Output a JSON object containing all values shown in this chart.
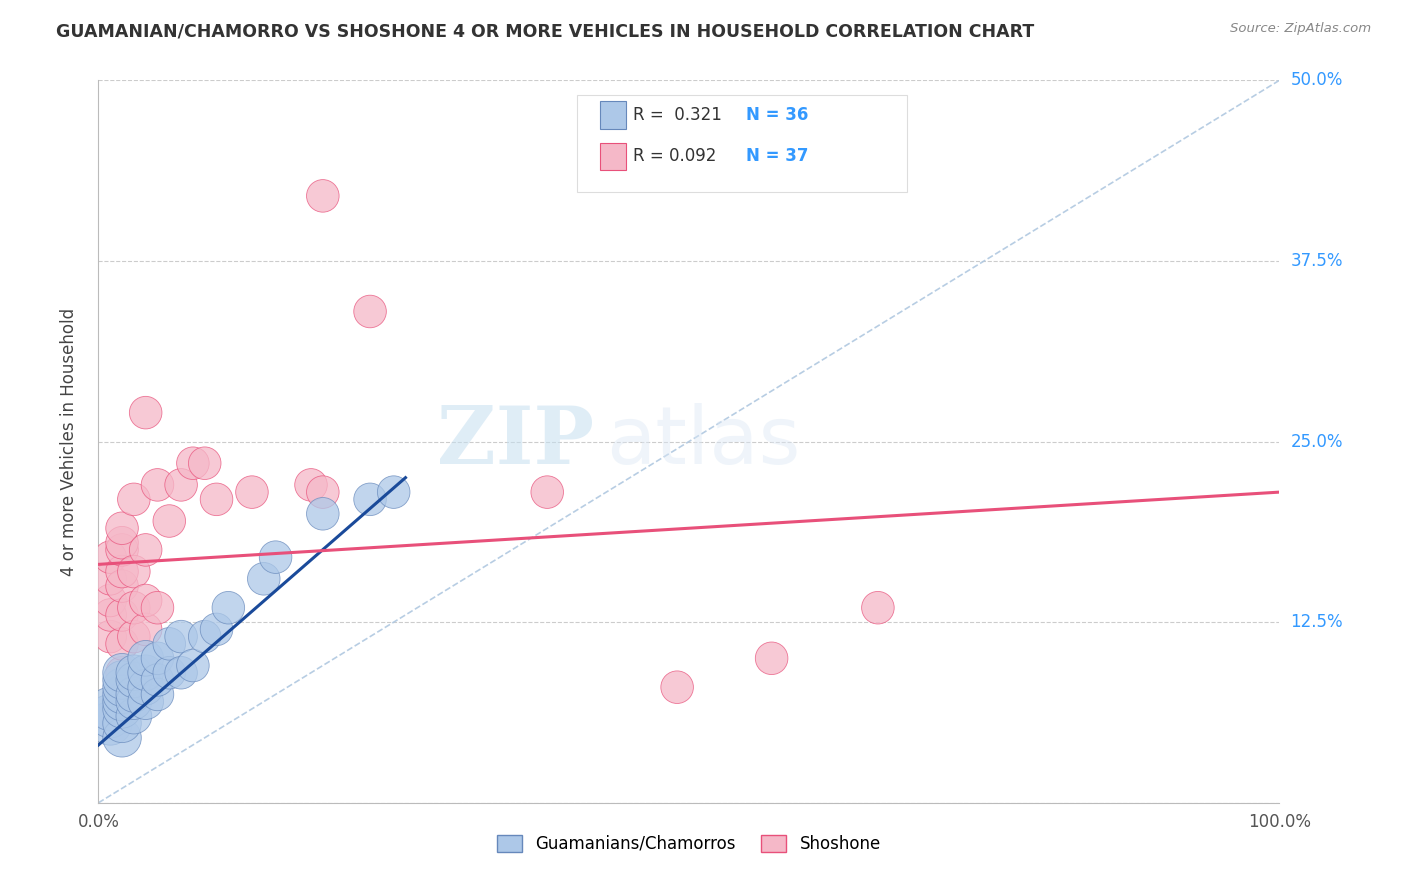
{
  "title": "GUAMANIAN/CHAMORRO VS SHOSHONE 4 OR MORE VEHICLES IN HOUSEHOLD CORRELATION CHART",
  "source": "Source: ZipAtlas.com",
  "ylabel": "4 or more Vehicles in Household",
  "xmin": 0.0,
  "xmax": 1.0,
  "ymin": 0.0,
  "ymax": 0.5,
  "yticks": [
    0.0,
    0.125,
    0.25,
    0.375,
    0.5
  ],
  "ytick_labels": [
    "",
    "12.5%",
    "25.0%",
    "37.5%",
    "50.0%"
  ],
  "xticks": [
    0.0,
    1.0
  ],
  "xtick_labels": [
    "0.0%",
    "100.0%"
  ],
  "legend_r1": "R =  0.321",
  "legend_n1": "N = 36",
  "legend_r2": "R = 0.092",
  "legend_n2": "N = 37",
  "color_blue": "#adc8e8",
  "color_pink": "#f5b8c8",
  "line_blue": "#1a4a9a",
  "line_pink": "#e8507a",
  "watermark_zip": "ZIP",
  "watermark_atlas": "atlas",
  "guamanian_x": [
    0.01,
    0.01,
    0.01,
    0.02,
    0.02,
    0.02,
    0.02,
    0.02,
    0.02,
    0.02,
    0.02,
    0.03,
    0.03,
    0.03,
    0.03,
    0.03,
    0.04,
    0.04,
    0.04,
    0.04,
    0.05,
    0.05,
    0.05,
    0.06,
    0.06,
    0.07,
    0.07,
    0.08,
    0.09,
    0.1,
    0.11,
    0.14,
    0.15,
    0.19,
    0.23,
    0.25
  ],
  "guamanian_y": [
    0.055,
    0.06,
    0.065,
    0.045,
    0.055,
    0.065,
    0.07,
    0.075,
    0.08,
    0.085,
    0.09,
    0.06,
    0.07,
    0.075,
    0.085,
    0.09,
    0.07,
    0.08,
    0.09,
    0.1,
    0.075,
    0.085,
    0.1,
    0.09,
    0.11,
    0.09,
    0.115,
    0.095,
    0.115,
    0.12,
    0.135,
    0.155,
    0.17,
    0.2,
    0.21,
    0.215
  ],
  "guamanian_size": [
    18,
    18,
    18,
    14,
    14,
    14,
    14,
    14,
    14,
    14,
    14,
    12,
    12,
    12,
    12,
    12,
    12,
    12,
    12,
    12,
    10,
    10,
    10,
    10,
    10,
    10,
    10,
    10,
    10,
    10,
    10,
    10,
    10,
    10,
    10,
    10
  ],
  "shoshone_x": [
    0.01,
    0.01,
    0.01,
    0.01,
    0.01,
    0.02,
    0.02,
    0.02,
    0.02,
    0.02,
    0.02,
    0.02,
    0.02,
    0.03,
    0.03,
    0.03,
    0.03,
    0.04,
    0.04,
    0.04,
    0.04,
    0.05,
    0.05,
    0.06,
    0.07,
    0.08,
    0.09,
    0.1,
    0.13,
    0.18,
    0.19,
    0.23,
    0.49,
    0.57,
    0.66,
    0.19,
    0.38
  ],
  "shoshone_y": [
    0.115,
    0.13,
    0.14,
    0.155,
    0.17,
    0.09,
    0.11,
    0.13,
    0.15,
    0.16,
    0.175,
    0.18,
    0.19,
    0.115,
    0.135,
    0.16,
    0.21,
    0.12,
    0.14,
    0.175,
    0.27,
    0.135,
    0.22,
    0.195,
    0.22,
    0.235,
    0.235,
    0.21,
    0.215,
    0.22,
    0.215,
    0.34,
    0.08,
    0.1,
    0.135,
    0.42,
    0.215
  ],
  "shoshone_size": [
    10,
    10,
    10,
    10,
    10,
    10,
    10,
    10,
    10,
    10,
    10,
    10,
    10,
    10,
    10,
    10,
    10,
    10,
    10,
    10,
    10,
    10,
    10,
    10,
    10,
    10,
    10,
    10,
    10,
    10,
    10,
    10,
    10,
    10,
    10,
    10,
    10
  ],
  "blue_line_x0": 0.0,
  "blue_line_y0": 0.04,
  "blue_line_x1": 0.26,
  "blue_line_y1": 0.225,
  "pink_line_x0": 0.0,
  "pink_line_y0": 0.165,
  "pink_line_x1": 1.0,
  "pink_line_y1": 0.215
}
